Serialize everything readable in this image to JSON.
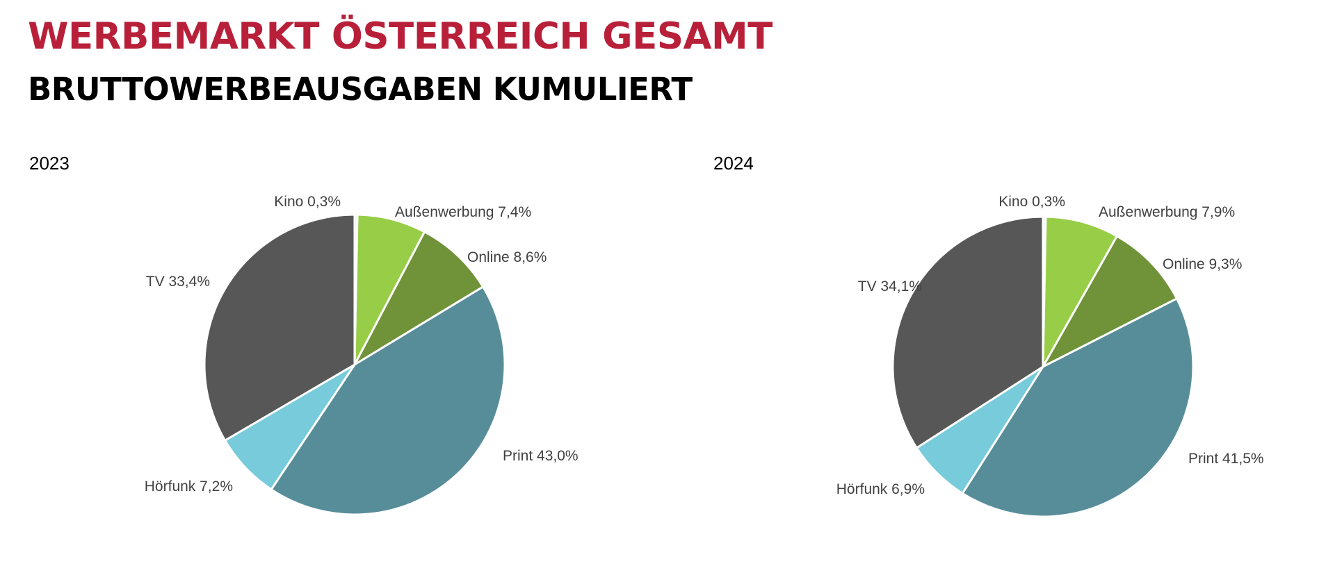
{
  "header": {
    "title": "WERBEMARKT ÖSTERREICH GESAMT",
    "subtitle": "BRUTTOWERBEAUSGABEN KUMULIERT"
  },
  "chart_data": [
    {
      "type": "pie",
      "title": "2023",
      "series": [
        {
          "name": "Kino",
          "value": 0.3,
          "label": "Kino 0,3%",
          "color": "#ebebeb"
        },
        {
          "name": "Außenwerbung",
          "value": 7.4,
          "label": "Außenwerbung 7,4%",
          "color": "#97cd47"
        },
        {
          "name": "Online",
          "value": 8.6,
          "label": "Online 8,6%",
          "color": "#709239"
        },
        {
          "name": "Print",
          "value": 43.0,
          "label": "Print 43,0%",
          "color": "#578d99"
        },
        {
          "name": "Hörfunk",
          "value": 7.2,
          "label": "Hörfunk 7,2%",
          "color": "#77cbda"
        },
        {
          "name": "TV",
          "value": 33.4,
          "label": "TV 33,4%",
          "color": "#575757"
        }
      ]
    },
    {
      "type": "pie",
      "title": "2024",
      "series": [
        {
          "name": "Kino",
          "value": 0.3,
          "label": "Kino 0,3%",
          "color": "#ebebeb"
        },
        {
          "name": "Außenwerbung",
          "value": 7.9,
          "label": "Außenwerbung 7,9%",
          "color": "#97cd47"
        },
        {
          "name": "Online",
          "value": 9.3,
          "label": "Online 9,3%",
          "color": "#709239"
        },
        {
          "name": "Print",
          "value": 41.5,
          "label": "Print 41,5%",
          "color": "#578d99"
        },
        {
          "name": "Hörfunk",
          "value": 6.9,
          "label": "Hörfunk 6,9%",
          "color": "#77cbda"
        },
        {
          "name": "TV",
          "value": 34.1,
          "label": "TV 34,1%",
          "color": "#575757"
        }
      ]
    }
  ]
}
